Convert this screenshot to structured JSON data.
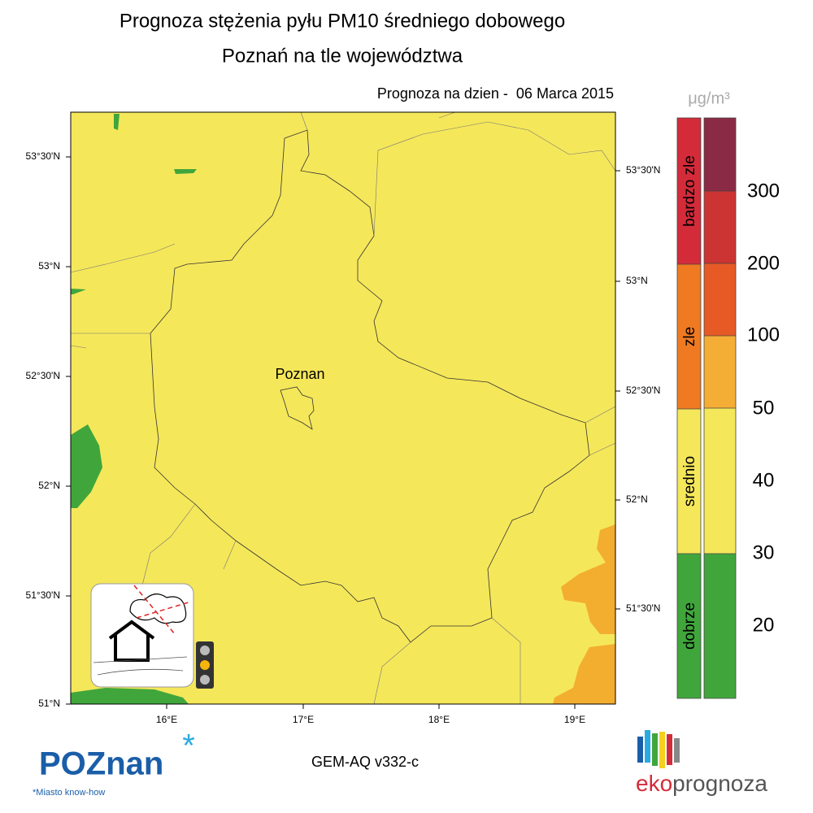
{
  "title": {
    "line1": "Prognoza stężenia pyłu PM10 średniego dobowego",
    "line2": "Poznań na tle województwa"
  },
  "forecast_date": "Prognoza na dzien -  06 Marca 2015",
  "map": {
    "left_lat_labels": [
      "53°30'N",
      "53°N",
      "52°30'N",
      "52°N",
      "51°30'N",
      "51°N"
    ],
    "right_lat_labels": [
      "53°30'N",
      "53°N",
      "52°30'N",
      "52°N",
      "51°30'N"
    ],
    "lon_labels": [
      "16°E",
      "17°E",
      "18°E",
      "19°E"
    ],
    "city_label": "Poznan"
  },
  "legend": {
    "unit": "μg/m³",
    "categories": [
      "bardzo zle",
      "zle",
      "srednio",
      "dobrze"
    ],
    "thresholds": [
      300,
      200,
      100,
      50,
      40,
      30,
      20
    ]
  },
  "footer": {
    "logo_left": "POZnan",
    "logo_left_tagline": "*Miasto know-how",
    "model": "GEM-AQ v332-c",
    "logo_right_prefix": "eko",
    "logo_right_suffix": "prognoza"
  }
}
